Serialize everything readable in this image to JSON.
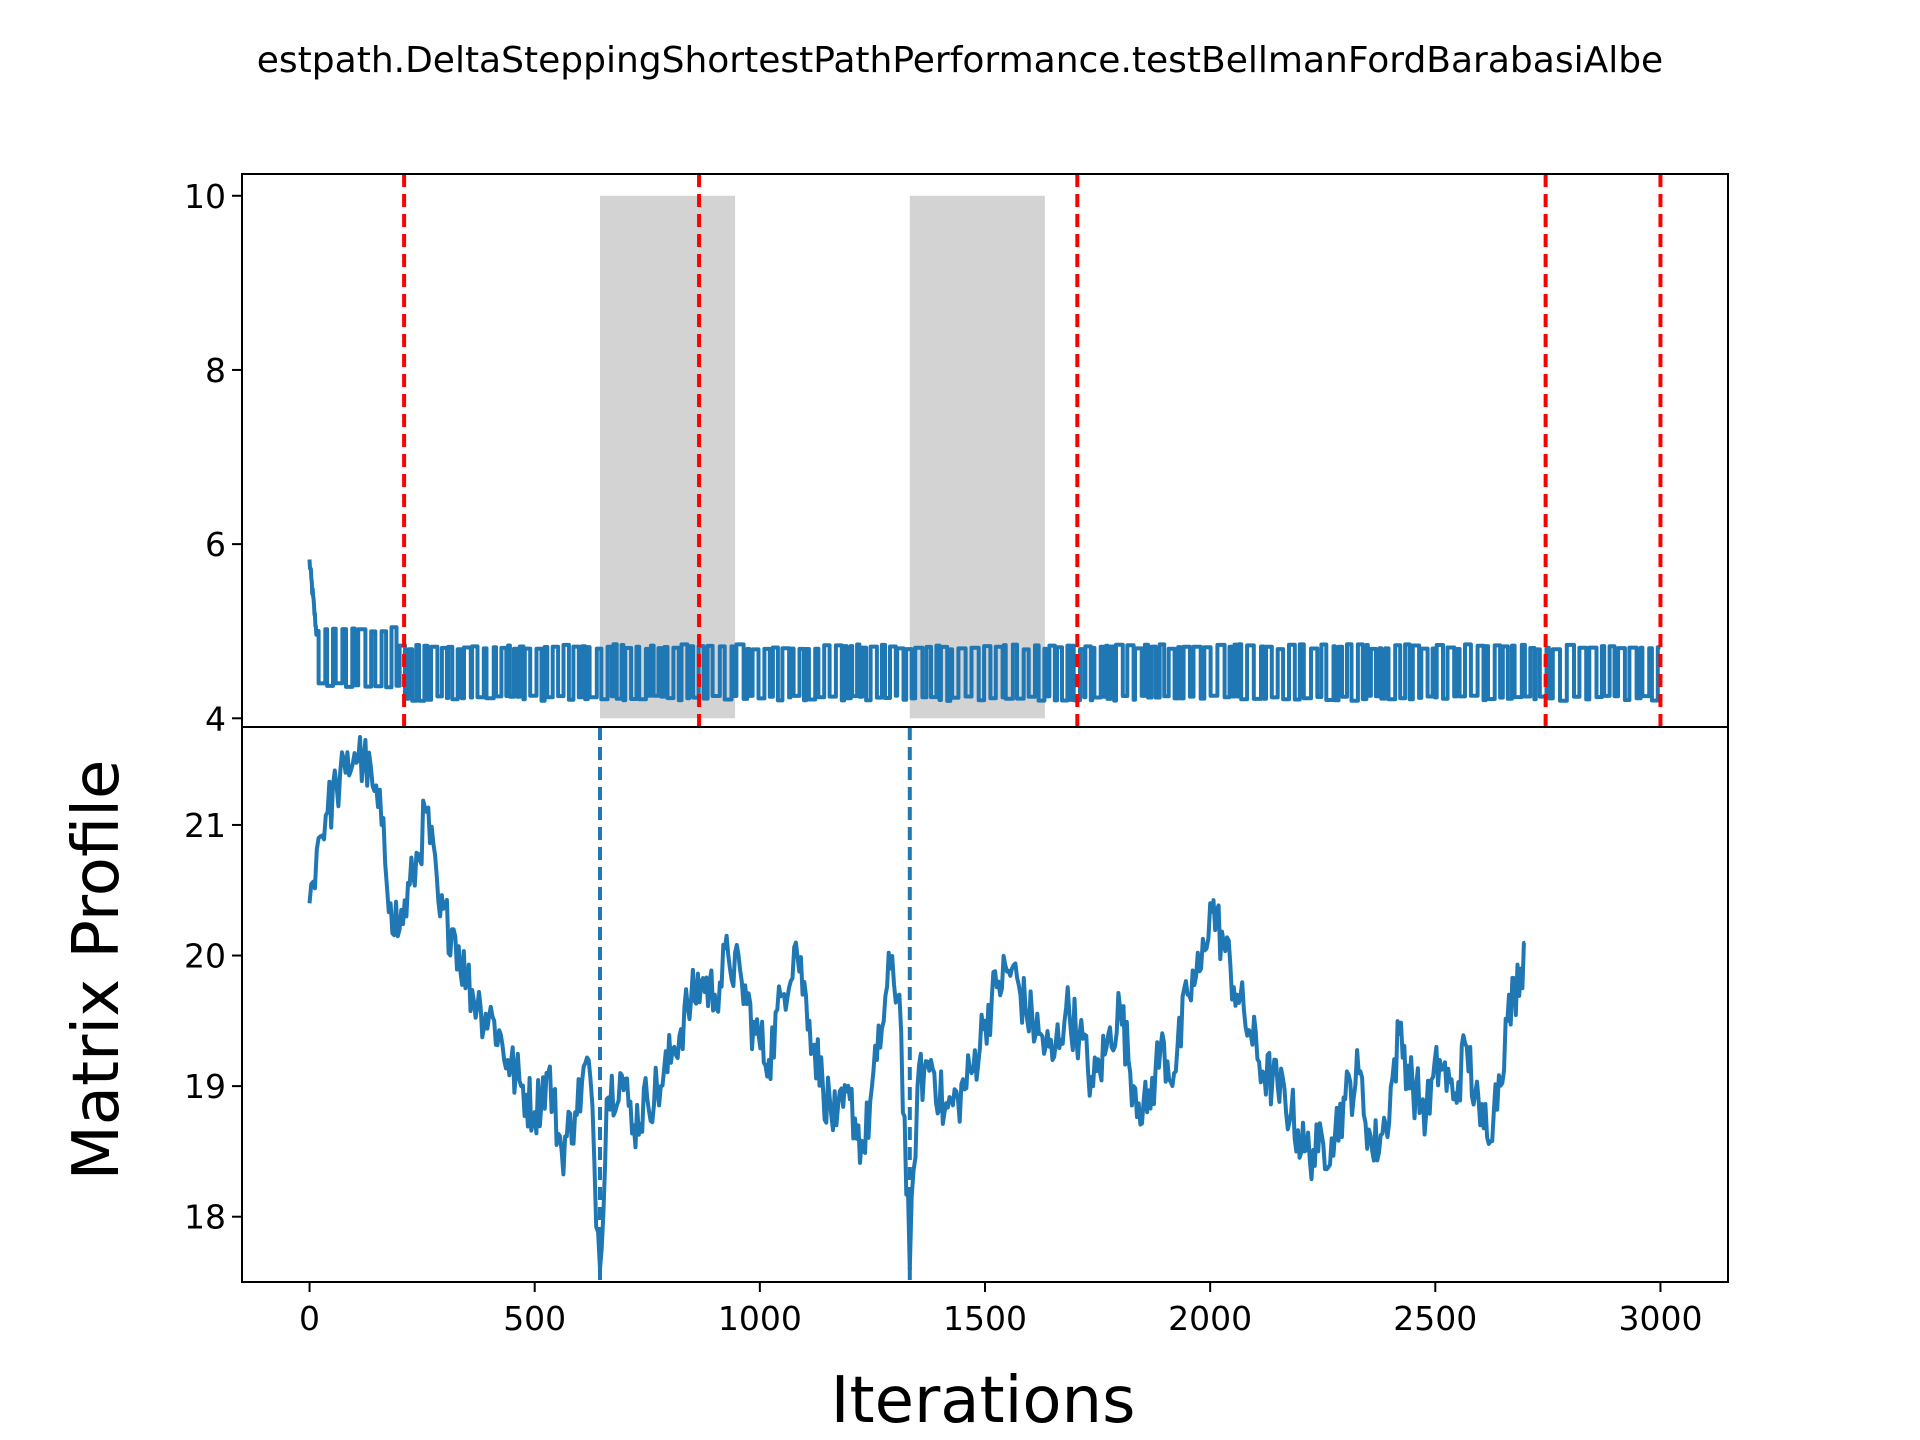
{
  "title": "estpath.DeltaSteppingShortestPathPerformance.testBellmanFordBarabasiAlbe",
  "chart_data": [
    {
      "type": "line",
      "panel": "top",
      "title": "",
      "xlabel": "",
      "ylabel": "",
      "xlim": [
        -150,
        3150
      ],
      "ylim": [
        3.9,
        10.25
      ],
      "yticks": [
        4,
        6,
        8,
        10
      ],
      "grid": false,
      "series": [
        {
          "color": "#1f77b4",
          "description": "runtime samples; initial decay from ~5.8 to ~5.0 by x≈15, then rapid alternation between ~4.2 and ~4.85 until x≈3000",
          "x_start": 0,
          "x_end": 3000,
          "segments": [
            {
              "x": [
                0,
                15
              ],
              "y": [
                5.8,
                5.0
              ]
            },
            {
              "x": [
                15,
                200
              ],
              "band": [
                4.35,
                5.05
              ]
            },
            {
              "x": [
                200,
                3000
              ],
              "band": [
                4.2,
                4.85
              ]
            }
          ]
        }
      ],
      "shaded_regions": [
        {
          "x": [
            645,
            945
          ],
          "y": [
            4,
            10
          ],
          "color": "#d3d3d3"
        },
        {
          "x": [
            1333,
            1633
          ],
          "y": [
            4,
            10
          ],
          "color": "#d3d3d3"
        }
      ],
      "vertical_lines": [
        {
          "x": 210,
          "color": "#ff0000",
          "style": "dashed"
        },
        {
          "x": 865,
          "color": "#ff0000",
          "style": "dashed"
        },
        {
          "x": 1705,
          "color": "#ff0000",
          "style": "dashed"
        },
        {
          "x": 2745,
          "color": "#ff0000",
          "style": "dashed"
        },
        {
          "x": 3000,
          "color": "#ff0000",
          "style": "dashed"
        }
      ]
    },
    {
      "type": "line",
      "panel": "bottom",
      "title": "",
      "xlabel": "Iterations",
      "ylabel": "Matrix Profile",
      "xlim": [
        -150,
        3150
      ],
      "ylim": [
        17.5,
        21.75
      ],
      "yticks": [
        18,
        19,
        20,
        21
      ],
      "xticks": [
        0,
        500,
        1000,
        1500,
        2000,
        2500,
        3000
      ],
      "grid": false,
      "series": [
        {
          "color": "#1f77b4",
          "x": [
            0,
            20,
            40,
            60,
            80,
            100,
            120,
            140,
            160,
            180,
            200,
            230,
            260,
            290,
            320,
            350,
            380,
            410,
            440,
            470,
            500,
            530,
            560,
            590,
            620,
            645,
            660,
            690,
            720,
            750,
            780,
            810,
            840,
            870,
            900,
            930,
            960,
            990,
            1020,
            1050,
            1080,
            1110,
            1140,
            1170,
            1200,
            1230,
            1260,
            1290,
            1310,
            1333,
            1350,
            1380,
            1410,
            1440,
            1470,
            1500,
            1530,
            1560,
            1590,
            1620,
            1650,
            1680,
            1710,
            1740,
            1770,
            1800,
            1830,
            1860,
            1890,
            1920,
            1950,
            1980,
            2000,
            2030,
            2060,
            2090,
            2120,
            2150,
            2180,
            2210,
            2240,
            2270,
            2300,
            2330,
            2360,
            2390,
            2420,
            2450,
            2480,
            2510,
            2540,
            2570,
            2600,
            2630,
            2660,
            2690,
            2700
          ],
          "y": [
            20.4,
            20.9,
            21.1,
            21.3,
            21.4,
            21.55,
            21.5,
            21.3,
            21.0,
            20.4,
            20.2,
            20.6,
            21.1,
            20.3,
            20.2,
            19.8,
            19.6,
            19.5,
            19.2,
            19.0,
            18.8,
            19.1,
            18.5,
            18.8,
            19.2,
            17.6,
            18.9,
            19.1,
            18.7,
            18.9,
            19.0,
            19.3,
            19.6,
            19.8,
            19.7,
            20.0,
            19.8,
            19.4,
            19.2,
            19.7,
            20.1,
            19.5,
            19.0,
            18.7,
            18.9,
            18.5,
            19.2,
            19.9,
            19.7,
            17.6,
            19.0,
            19.2,
            18.8,
            18.9,
            19.1,
            19.5,
            19.8,
            19.9,
            19.6,
            19.4,
            19.2,
            19.6,
            19.4,
            19.0,
            19.3,
            19.6,
            19.0,
            18.8,
            19.3,
            19.1,
            19.7,
            19.9,
            20.4,
            20.1,
            19.7,
            19.4,
            19.1,
            19.0,
            18.8,
            18.5,
            18.5,
            18.6,
            18.9,
            19.1,
            18.5,
            18.7,
            19.4,
            19.0,
            18.8,
            19.2,
            18.9,
            19.3,
            18.7,
            18.8,
            19.5,
            19.9,
            20.1
          ]
        }
      ],
      "vertical_lines": [
        {
          "x": 645,
          "color": "#1f77b4",
          "style": "dashed"
        },
        {
          "x": 1333,
          "color": "#1f77b4",
          "style": "dashed"
        }
      ]
    }
  ]
}
